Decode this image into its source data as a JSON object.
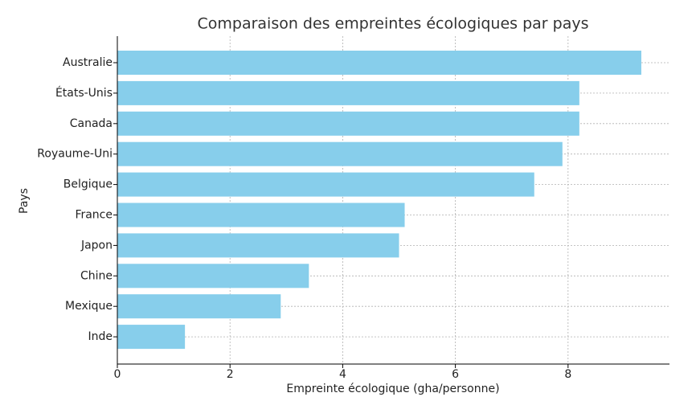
{
  "chart_data": {
    "type": "barh",
    "title": "Comparaison des empreintes écologiques par pays",
    "xlabel": "Empreinte écologique (gha/personne)",
    "ylabel": "Pays",
    "categories": [
      "Australie",
      "États-Unis",
      "Canada",
      "Royaume-Uni",
      "Belgique",
      "France",
      "Japon",
      "Chine",
      "Mexique",
      "Inde"
    ],
    "values": [
      9.3,
      8.2,
      8.2,
      7.9,
      7.4,
      5.1,
      5.0,
      3.4,
      2.9,
      1.2
    ],
    "color": "#87ceeb",
    "xlim": [
      0,
      9.8
    ],
    "xticks": [
      0,
      2,
      4,
      6,
      8
    ],
    "grid": true
  }
}
